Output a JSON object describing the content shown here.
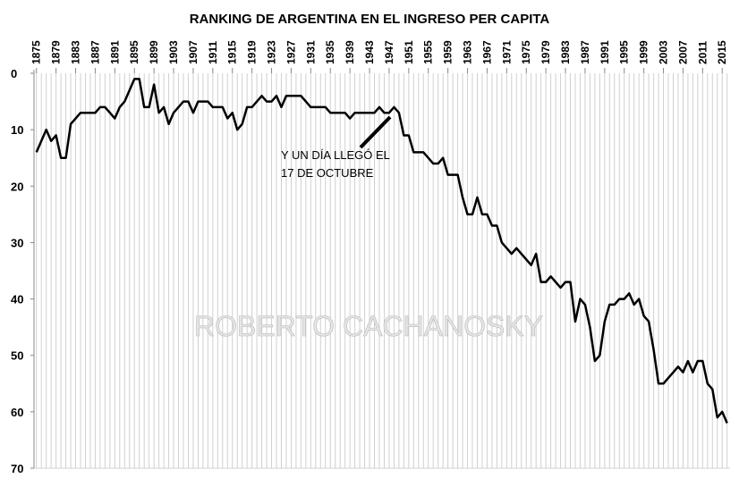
{
  "chart_data": {
    "type": "line",
    "title": "RANKING  DE ARGENTINA  EN EL INGRESO PER CAPITA",
    "watermark": "ROBERTO CACHANOSKY",
    "annotation": [
      "Y UN DÍA LLEGÓ EL",
      "17 DE OCTUBRE"
    ],
    "x": [
      1875,
      1876,
      1877,
      1878,
      1879,
      1880,
      1881,
      1882,
      1883,
      1884,
      1885,
      1886,
      1887,
      1888,
      1889,
      1890,
      1891,
      1892,
      1893,
      1894,
      1895,
      1896,
      1897,
      1898,
      1899,
      1900,
      1901,
      1902,
      1903,
      1904,
      1905,
      1906,
      1907,
      1908,
      1909,
      1910,
      1911,
      1912,
      1913,
      1914,
      1915,
      1916,
      1917,
      1918,
      1919,
      1920,
      1921,
      1922,
      1923,
      1924,
      1925,
      1926,
      1927,
      1928,
      1929,
      1930,
      1931,
      1932,
      1933,
      1934,
      1935,
      1936,
      1937,
      1938,
      1939,
      1940,
      1941,
      1942,
      1943,
      1944,
      1945,
      1946,
      1947,
      1948,
      1949,
      1950,
      1951,
      1952,
      1953,
      1954,
      1955,
      1956,
      1957,
      1958,
      1959,
      1960,
      1961,
      1962,
      1963,
      1964,
      1965,
      1966,
      1967,
      1968,
      1969,
      1970,
      1971,
      1972,
      1973,
      1974,
      1975,
      1976,
      1977,
      1978,
      1979,
      1980,
      1981,
      1982,
      1983,
      1984,
      1985,
      1986,
      1987,
      1988,
      1989,
      1990,
      1991,
      1992,
      1993,
      1994,
      1995,
      1996,
      1997,
      1998,
      1999,
      2000,
      2001,
      2002,
      2003,
      2004,
      2005,
      2006,
      2007,
      2008,
      2009,
      2010,
      2011,
      2012,
      2013,
      2014,
      2015,
      2016
    ],
    "series": [
      {
        "color": "#000000",
        "values": [
          14,
          12,
          10,
          12,
          11,
          15,
          15,
          9,
          8,
          7,
          7,
          7,
          7,
          6,
          6,
          7,
          8,
          6,
          5,
          3,
          1,
          1,
          6,
          6,
          2,
          7,
          6,
          9,
          7,
          6,
          5,
          5,
          7,
          5,
          5,
          5,
          6,
          6,
          6,
          8,
          7,
          10,
          9,
          6,
          6,
          5,
          4,
          5,
          5,
          4,
          6,
          4,
          4,
          4,
          4,
          5,
          6,
          6,
          6,
          6,
          7,
          7,
          7,
          7,
          8,
          7,
          7,
          7,
          7,
          7,
          6,
          7,
          7,
          6,
          7,
          11,
          11,
          14,
          14,
          14,
          15,
          16,
          16,
          15,
          18,
          18,
          18,
          22,
          25,
          25,
          22,
          25,
          25,
          27,
          27,
          30,
          31,
          32,
          31,
          32,
          33,
          34,
          32,
          37,
          37,
          36,
          37,
          38,
          37,
          37,
          44,
          40,
          41,
          45,
          51,
          50,
          44,
          41,
          41,
          40,
          40,
          39,
          41,
          40,
          43,
          44,
          49,
          55,
          55,
          54,
          53,
          52,
          53,
          51,
          53,
          51,
          51,
          55,
          56,
          61,
          60,
          62
        ]
      }
    ],
    "xlim": [
      1874.5,
      2016.6
    ],
    "xticks": [
      1875,
      1879,
      1883,
      1887,
      1891,
      1895,
      1899,
      1903,
      1907,
      1911,
      1915,
      1919,
      1923,
      1927,
      1931,
      1935,
      1939,
      1943,
      1947,
      1951,
      1955,
      1959,
      1963,
      1967,
      1971,
      1975,
      1979,
      1983,
      1987,
      1991,
      1995,
      1999,
      2003,
      2007,
      2011,
      2015
    ],
    "ylim": [
      0,
      70
    ],
    "yticks": [
      0,
      10,
      20,
      30,
      40,
      50,
      60,
      70
    ],
    "y_inverted": true,
    "grid": "x"
  }
}
